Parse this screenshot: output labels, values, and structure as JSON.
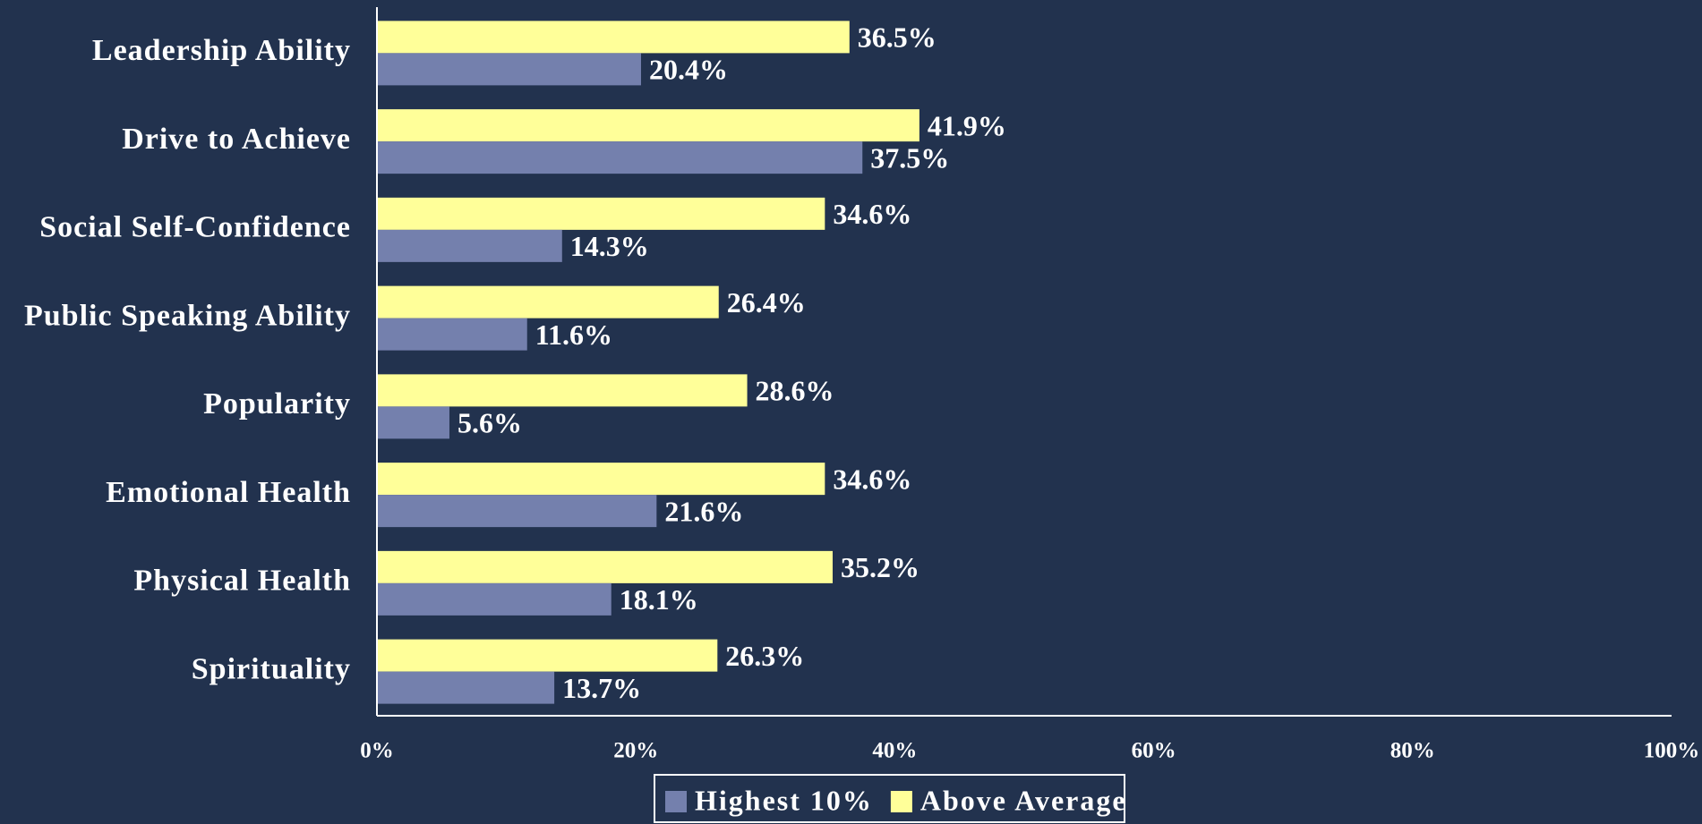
{
  "chart_data": {
    "type": "hbar",
    "categories": [
      "Leadership Ability",
      "Drive to Achieve",
      "Social Self-Confidence",
      "Public Speaking Ability",
      "Popularity",
      "Emotional Health",
      "Physical Health",
      "Spirituality"
    ],
    "series": [
      {
        "name": "Highest 10%",
        "color": "#7480ad",
        "values": [
          20.4,
          37.5,
          14.3,
          11.6,
          5.6,
          21.6,
          18.1,
          13.7
        ],
        "value_labels": [
          "20.4%",
          "37.5%",
          "14.3%",
          "11.6%",
          "5.6%",
          "21.6%",
          "18.1%",
          "13.7%"
        ]
      },
      {
        "name": "Above Average",
        "color": "#ffff99",
        "values": [
          36.5,
          41.9,
          34.6,
          26.4,
          28.6,
          34.6,
          35.2,
          26.3
        ],
        "value_labels": [
          "36.5%",
          "41.9%",
          "34.6%",
          "26.4%",
          "28.6%",
          "34.6%",
          "35.2%",
          "26.3%"
        ]
      }
    ],
    "xlim": [
      0,
      100
    ],
    "xticks": [
      {
        "value": 0,
        "label": "0%"
      },
      {
        "value": 20,
        "label": "20%"
      },
      {
        "value": 40,
        "label": "40%"
      },
      {
        "value": 60,
        "label": "60%"
      },
      {
        "value": 80,
        "label": "80%"
      },
      {
        "value": 100,
        "label": "100%"
      }
    ],
    "legend": "bottom"
  }
}
